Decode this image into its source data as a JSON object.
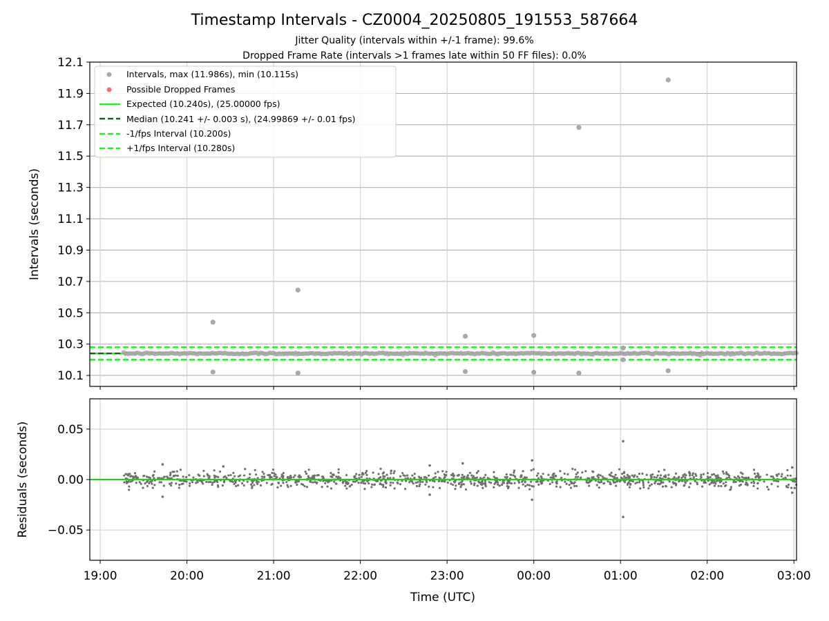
{
  "figure": {
    "title": "Timestamp Intervals - CZ0004_20250805_191553_587664",
    "subtitle_1": "Jitter Quality (intervals within +/-1 frame): 99.6%",
    "subtitle_2": "Dropped Frame Rate (intervals >1 frames late within 50 FF files): 0.0%"
  },
  "chart_data": [
    {
      "type": "scatter",
      "title": "Timestamp Intervals - CZ0004_20250805_191553_587664",
      "xlabel": "",
      "ylabel": "Intervals (seconds)",
      "x_unit": "hours since 19:00 UTC",
      "xlim": [
        -0.12,
        8.03
      ],
      "ylim": [
        10.03,
        12.1
      ],
      "yticks": [
        10.1,
        10.3,
        10.5,
        10.7,
        10.9,
        11.1,
        11.3,
        11.5,
        11.7,
        11.9,
        12.1
      ],
      "grid": true,
      "legend_position": "upper-left",
      "legend": [
        "Intervals, max (11.986s), min (10.115s)",
        "Possible Dropped Frames",
        "Expected (10.240s), (25.00000 fps)",
        "Median (10.241 +/- 0.003 s), (24.99869 +/- 0.01 fps)",
        "-1/fps Interval (10.200s)",
        "+1/fps Interval (10.280s)"
      ],
      "reference_lines": {
        "expected": 10.24,
        "median": 10.241,
        "minus_one_frame": 10.2,
        "plus_one_frame": 10.28
      },
      "series": [
        {
          "name": "Intervals, max (11.986s), min (10.115s)",
          "color": "#a9a9a9",
          "baseline_value": 10.24,
          "baseline_range": [
            0.27,
            8.03
          ],
          "outliers": [
            {
              "x": 1.3,
              "y": 10.44
            },
            {
              "x": 1.3,
              "y": 10.122
            },
            {
              "x": 2.28,
              "y": 10.645
            },
            {
              "x": 2.28,
              "y": 10.115
            },
            {
              "x": 4.21,
              "y": 10.35
            },
            {
              "x": 4.21,
              "y": 10.125
            },
            {
              "x": 5.0,
              "y": 10.355
            },
            {
              "x": 5.0,
              "y": 10.12
            },
            {
              "x": 5.52,
              "y": 11.683
            },
            {
              "x": 5.52,
              "y": 10.115
            },
            {
              "x": 6.03,
              "y": 10.275
            },
            {
              "x": 6.03,
              "y": 10.2
            },
            {
              "x": 6.55,
              "y": 11.986
            },
            {
              "x": 6.55,
              "y": 10.13
            }
          ]
        },
        {
          "name": "Possible Dropped Frames",
          "color": "#ff6b6b",
          "points": []
        }
      ]
    },
    {
      "type": "scatter",
      "title": "",
      "xlabel": "Time (UTC)",
      "ylabel": "Residuals (seconds)",
      "x_unit": "hours since 19:00 UTC",
      "xlim": [
        -0.12,
        8.03
      ],
      "ylim": [
        -0.08,
        0.08
      ],
      "yticks": [
        -0.05,
        0.0,
        0.05
      ],
      "ytick_labels": [
        "−0.05",
        "0.00",
        "0.05"
      ],
      "xticks": [
        0,
        1,
        2,
        3,
        4,
        5,
        6,
        7,
        8
      ],
      "xtick_labels": [
        "19:00",
        "20:00",
        "21:00",
        "22:00",
        "23:00",
        "00:00",
        "01:00",
        "02:00",
        "03:00"
      ],
      "grid": true,
      "zero_line_color": "#22cc22",
      "series": [
        {
          "name": "",
          "color": "#707070",
          "noise_sd": 0.004,
          "x_range": [
            0.27,
            8.03
          ],
          "notable_points": [
            {
              "x": 0.72,
              "y": 0.015
            },
            {
              "x": 0.72,
              "y": -0.017
            },
            {
              "x": 1.42,
              "y": 0.013
            },
            {
              "x": 3.8,
              "y": 0.014
            },
            {
              "x": 3.8,
              "y": -0.015
            },
            {
              "x": 4.18,
              "y": 0.016
            },
            {
              "x": 4.98,
              "y": 0.019
            },
            {
              "x": 4.98,
              "y": -0.02
            },
            {
              "x": 6.03,
              "y": 0.038
            },
            {
              "x": 6.03,
              "y": -0.037
            },
            {
              "x": 7.98,
              "y": 0.012
            },
            {
              "x": 7.98,
              "y": -0.013
            }
          ]
        }
      ]
    }
  ]
}
